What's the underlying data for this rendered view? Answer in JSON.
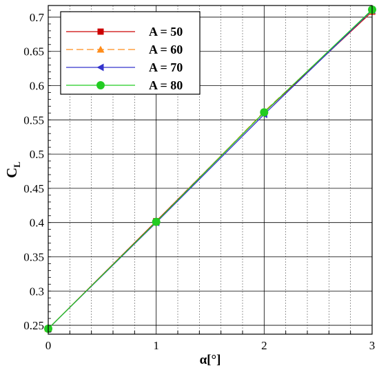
{
  "chart_data": {
    "type": "line",
    "xlabel": "α[°]",
    "ylabel": "C",
    "ylabel_sub": "L",
    "xlim": [
      0,
      3
    ],
    "ylim": [
      0.237,
      0.717
    ],
    "x_ticks": [
      0,
      1,
      2,
      3
    ],
    "y_ticks": [
      0.25,
      0.3,
      0.35,
      0.4,
      0.45,
      0.5,
      0.55,
      0.6,
      0.65,
      0.7
    ],
    "x_tick_labels": [
      "0",
      "1",
      "2",
      "3"
    ],
    "y_tick_labels": [
      "0.25",
      "0.3",
      "0.35",
      "0.4",
      "0.45",
      "0.5",
      "0.55",
      "0.6",
      "0.65",
      "0.7"
    ],
    "grid": true,
    "legend_position": "top-left",
    "x": [
      0,
      1,
      2,
      3
    ],
    "series": [
      {
        "name": "A = 50",
        "values": [
          0.245,
          0.402,
          0.561,
          0.708
        ],
        "color": "#cc0000",
        "dash": "",
        "marker": "square"
      },
      {
        "name": "A = 60",
        "values": [
          0.245,
          0.401,
          0.562,
          0.709
        ],
        "color": "#ff8c1a",
        "dash": "10,5",
        "marker": "triangle"
      },
      {
        "name": "A = 70",
        "values": [
          0.245,
          0.4,
          0.558,
          0.71
        ],
        "color": "#3333cc",
        "dash": "",
        "marker": "triangle-left"
      },
      {
        "name": "A = 80",
        "values": [
          0.245,
          0.401,
          0.561,
          0.711
        ],
        "color": "#22cc22",
        "dash": "",
        "marker": "circle"
      }
    ]
  }
}
